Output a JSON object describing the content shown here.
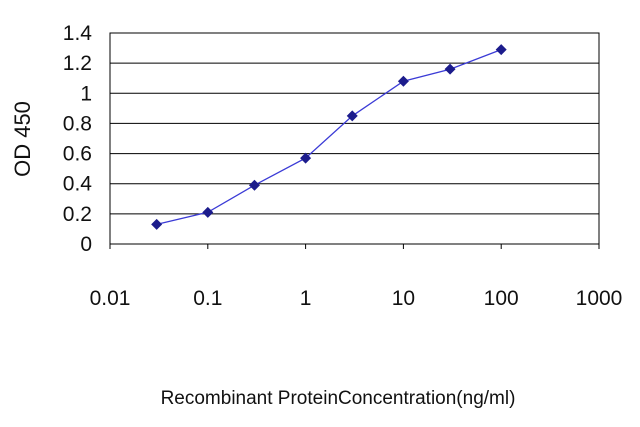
{
  "chart_data": {
    "type": "line",
    "xlabel": "Recombinant ProteinConcentration(ng/ml)",
    "ylabel": "OD 450",
    "x_scale": "log",
    "xlim": [
      0.01,
      1000
    ],
    "ylim": [
      0,
      1.4
    ],
    "x_ticks": [
      "0.01",
      "0.1",
      "1",
      "10",
      "100",
      "1000"
    ],
    "y_ticks": [
      "0",
      "0.2",
      "0.4",
      "0.6",
      "0.8",
      "1",
      "1.2",
      "1.4"
    ],
    "grid": "horizontal",
    "series": [
      {
        "x": [
          0.03,
          0.1,
          0.3,
          1,
          3,
          10,
          30,
          100
        ],
        "y": [
          0.13,
          0.21,
          0.39,
          0.57,
          0.85,
          1.08,
          1.16,
          1.29
        ]
      }
    ],
    "colors": {
      "line": "#3b3bd6",
      "marker": "#1c1c8c",
      "grid": "#000000"
    }
  }
}
